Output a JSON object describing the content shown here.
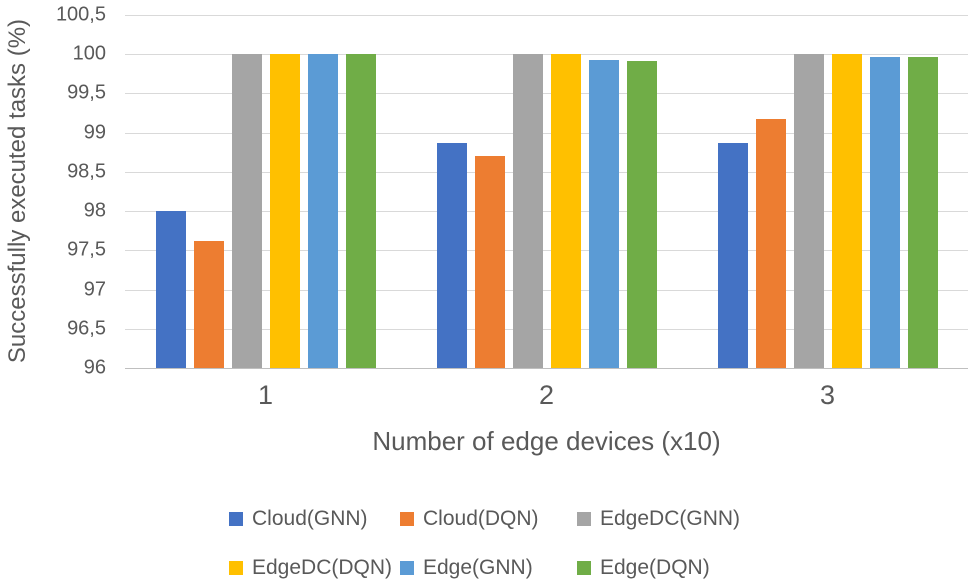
{
  "chart_data": {
    "type": "bar",
    "title": "",
    "xlabel": "Number of edge devices (x10)",
    "ylabel": "Successfully executed tasks (%)",
    "categories": [
      "1",
      "2",
      "3"
    ],
    "series": [
      {
        "name": "Cloud(GNN)",
        "color": "#4472C4",
        "values": [
          98.0,
          98.87,
          98.87
        ]
      },
      {
        "name": "Cloud(DQN)",
        "color": "#ED7D31",
        "values": [
          97.62,
          98.7,
          99.17
        ]
      },
      {
        "name": "EdgeDC(GNN)",
        "color": "#A5A5A5",
        "values": [
          100,
          100,
          100
        ]
      },
      {
        "name": "EdgeDC(DQN)",
        "color": "#FFC000",
        "values": [
          100,
          100,
          100
        ]
      },
      {
        "name": "Edge(GNN)",
        "color": "#5B9BD5",
        "values": [
          100,
          99.93,
          99.97
        ]
      },
      {
        "name": "Edge(DQN)",
        "color": "#70AD47",
        "values": [
          100,
          99.91,
          99.96
        ]
      }
    ],
    "ylim": [
      96,
      100.5
    ],
    "ytick_step": 0.5,
    "ytick_labels_top_to_bottom": [
      "100,5",
      "100",
      "99,5",
      "99",
      "98,5",
      "98",
      "97,5",
      "97",
      "96,5",
      "96"
    ],
    "decimal_separator": ",",
    "grid": true,
    "legend_position": "bottom",
    "legend_rows": [
      [
        "Cloud(GNN)",
        "Cloud(DQN)",
        "EdgeDC(GNN)"
      ],
      [
        "EdgeDC(DQN)",
        "Edge(GNN)",
        "Edge(DQN)"
      ]
    ]
  },
  "colors": {
    "text": "#595959",
    "gridline": "#D9D9D9",
    "axis_line": "#BFBFBF",
    "background": "#FFFFFF"
  }
}
